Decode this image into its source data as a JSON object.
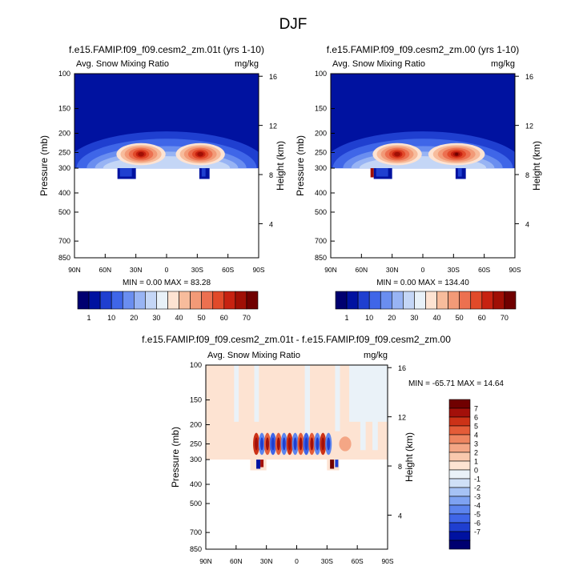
{
  "figure": {
    "title": "DJF"
  },
  "colors": {
    "abs_levels": [
      "#000070",
      "#0012a0",
      "#1f3fd0",
      "#3f66e8",
      "#6a8ef0",
      "#98b4f4",
      "#c4d6f6",
      "#e8f1f8",
      "#fde3d2",
      "#f7bc9c",
      "#f29a77",
      "#ec7050",
      "#e14a2a",
      "#c72211",
      "#a00f05",
      "#700000"
    ],
    "diff_levels": [
      "#000070",
      "#0012a0",
      "#1f3fd0",
      "#3f66e8",
      "#5c84ee",
      "#7ea2f2",
      "#a6c2f5",
      "#cfe0f7",
      "#eaf2f8",
      "#fde3d2",
      "#f9c8ad",
      "#f4a685",
      "#ee8560",
      "#e45c38",
      "#cc3217",
      "#a3100a",
      "#700000"
    ]
  },
  "panels": [
    {
      "title": "f.e15.FAMIP.f09_f09.cesm2_zm.01t (yrs 1-10)",
      "left_label": "Avg. Snow Mixing Ratio",
      "right_label": "mg/kg",
      "stats": "MIN =  0.00   MAX = 83.28"
    },
    {
      "title": "f.e15.FAMIP.f09_f09.cesm2_zm.00 (yrs 1-10)",
      "left_label": "Avg. Snow Mixing Ratio",
      "right_label": "mg/kg",
      "stats": "MIN =  0.00   MAX = 134.40"
    },
    {
      "title": "f.e15.FAMIP.f09_f09.cesm2_zm.01t - f.e15.FAMIP.f09_f09.cesm2_zm.00",
      "left_label": "Avg. Snow Mixing Ratio",
      "right_label": "mg/kg",
      "stats": "MIN = -65.71   MAX =  14.64"
    }
  ],
  "axes": {
    "ylabel": "Pressure (mb)",
    "y2label": "Height (km)",
    "pressure_ticks": [
      "100",
      "150",
      "200",
      "250",
      "300",
      "400",
      "500",
      "700",
      "850"
    ],
    "height_ticks": [
      "16",
      "12",
      "8",
      "4"
    ],
    "lat_ticks": [
      "90N",
      "60N",
      "30N",
      "0",
      "30S",
      "60S",
      "90S"
    ]
  },
  "colorbars": {
    "abs_labels": [
      "1",
      "10",
      "20",
      "30",
      "40",
      "50",
      "60",
      "70"
    ],
    "diff_labels": [
      "7",
      "6",
      "5",
      "4",
      "3",
      "2",
      "1",
      "0",
      "-1",
      "-2",
      "-3",
      "-4",
      "-5",
      "-6",
      "-7"
    ]
  },
  "chart_data": [
    {
      "type": "heatmap",
      "title": "f.e15.FAMIP.f09_f09.cesm2_zm.01t (yrs 1-10)",
      "xlabel": "",
      "ylabel": "Pressure (mb)",
      "y2label": "Height (km)",
      "x_ticks": [
        "90N",
        "60N",
        "30N",
        "0",
        "30S",
        "60S",
        "90S"
      ],
      "y_ticks": [
        100,
        150,
        200,
        250,
        300,
        400,
        500,
        700,
        850
      ],
      "y_scale": "log",
      "ylim": [
        100,
        850
      ],
      "contour_levels": [
        1,
        10,
        20,
        30,
        40,
        50,
        60,
        70
      ],
      "min": 0.0,
      "max": 83.28,
      "maxima": [
        {
          "lat": 25,
          "p": 255,
          "value": 83.28
        },
        {
          "lat": -35,
          "p": 255,
          "value": 75
        }
      ]
    },
    {
      "type": "heatmap",
      "title": "f.e15.FAMIP.f09_f09.cesm2_zm.00 (yrs 1-10)",
      "xlabel": "",
      "ylabel": "Pressure (mb)",
      "y2label": "Height (km)",
      "x_ticks": [
        "90N",
        "60N",
        "30N",
        "0",
        "30S",
        "60S",
        "90S"
      ],
      "y_ticks": [
        100,
        150,
        200,
        250,
        300,
        400,
        500,
        700,
        850
      ],
      "y_scale": "log",
      "ylim": [
        100,
        850
      ],
      "contour_levels": [
        1,
        10,
        20,
        30,
        40,
        50,
        60,
        70
      ],
      "min": 0.0,
      "max": 134.4,
      "maxima": [
        {
          "lat": 25,
          "p": 255,
          "value": 80
        },
        {
          "lat": -35,
          "p": 255,
          "value": 134.4
        }
      ]
    },
    {
      "type": "heatmap",
      "title": "f.e15.FAMIP.f09_f09.cesm2_zm.01t - f.e15.FAMIP.f09_f09.cesm2_zm.00",
      "xlabel": "",
      "ylabel": "Pressure (mb)",
      "y2label": "Height (km)",
      "x_ticks": [
        "90N",
        "60N",
        "30N",
        "0",
        "30S",
        "60S",
        "90S"
      ],
      "y_ticks": [
        100,
        150,
        200,
        250,
        300,
        400,
        500,
        700,
        850
      ],
      "y_scale": "log",
      "ylim": [
        100,
        850
      ],
      "contour_levels": [
        -7,
        -6,
        -5,
        -4,
        -3,
        -2,
        -1,
        0,
        1,
        2,
        3,
        4,
        5,
        6,
        7
      ],
      "min": -65.71,
      "max": 14.64
    }
  ]
}
